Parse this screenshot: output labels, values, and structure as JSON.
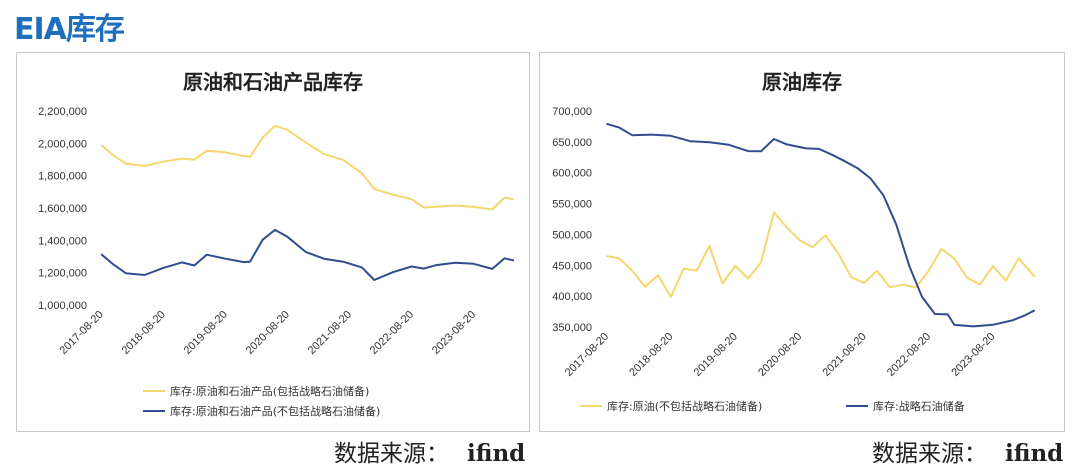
{
  "header": {
    "title": "EIA库存"
  },
  "source": {
    "label": "数据来源：",
    "value": "ifind"
  },
  "chart_data": [
    {
      "type": "line",
      "title": "原油和石油产品库存",
      "xlabel": "",
      "ylabel": "",
      "x_ticks": [
        "2017-08-20",
        "2018-08-20",
        "2019-08-20",
        "2020-08-20",
        "2021-08-20",
        "2022-08-20",
        "2023-08-20"
      ],
      "y_ticks": [
        "2,200,000",
        "2,000,000",
        "1,800,000",
        "1,600,000",
        "1,400,000",
        "1,200,000",
        "1,000,000"
      ],
      "ylim": [
        1000000,
        2200000
      ],
      "xlim": [
        2017.5,
        2024.3
      ],
      "grid": false,
      "legend": "bottom",
      "series": [
        {
          "name": "库存:原油和石油产品(包括战略石油储备)",
          "color": "#f5d76e",
          "x": [
            2017.6,
            2017.8,
            2018.0,
            2018.3,
            2018.6,
            2018.9,
            2019.1,
            2019.3,
            2019.6,
            2019.9,
            2020.0,
            2020.2,
            2020.4,
            2020.6,
            2020.9,
            2021.2,
            2021.5,
            2021.8,
            2022.0,
            2022.3,
            2022.6,
            2022.8,
            2023.0,
            2023.3,
            2023.6,
            2023.9,
            2024.1,
            2024.25
          ],
          "values": [
            1990000,
            1920000,
            1870000,
            1860000,
            1890000,
            1910000,
            1900000,
            1950000,
            1940000,
            1920000,
            1920000,
            2040000,
            2110000,
            2080000,
            2000000,
            1930000,
            1900000,
            1820000,
            1720000,
            1680000,
            1650000,
            1600000,
            1610000,
            1620000,
            1610000,
            1590000,
            1660000,
            1650000
          ]
        },
        {
          "name": "库存:原油和石油产品(不包括战略石油储备)",
          "color": "#2f4d8f",
          "x": [
            2017.6,
            2017.8,
            2018.0,
            2018.3,
            2018.6,
            2018.9,
            2019.1,
            2019.3,
            2019.6,
            2019.9,
            2020.0,
            2020.2,
            2020.4,
            2020.6,
            2020.9,
            2021.2,
            2021.5,
            2021.8,
            2022.0,
            2022.3,
            2022.6,
            2022.8,
            2023.0,
            2023.3,
            2023.6,
            2023.9,
            2024.1,
            2024.25
          ],
          "values": [
            1310000,
            1250000,
            1200000,
            1190000,
            1230000,
            1260000,
            1240000,
            1310000,
            1290000,
            1270000,
            1270000,
            1400000,
            1460000,
            1420000,
            1330000,
            1290000,
            1270000,
            1230000,
            1150000,
            1200000,
            1240000,
            1230000,
            1250000,
            1260000,
            1250000,
            1220000,
            1290000,
            1280000
          ]
        }
      ]
    },
    {
      "type": "line",
      "title": "原油库存",
      "xlabel": "",
      "ylabel": "",
      "x_ticks": [
        "2017-08-20",
        "2018-08-20",
        "2019-08-20",
        "2020-08-20",
        "2021-08-20",
        "2022-08-20",
        "2023-08-20"
      ],
      "y_ticks": [
        "700,000",
        "650,000",
        "600,000",
        "550,000",
        "500,000",
        "450,000",
        "400,000",
        "350,000"
      ],
      "ylim": [
        350000,
        700000
      ],
      "xlim": [
        2017.5,
        2024.3
      ],
      "grid": false,
      "legend": "bottom",
      "series": [
        {
          "name": "库存:原油(不包括战略石油储备)",
          "color": "#f5d76e",
          "x": [
            2017.6,
            2017.8,
            2018.0,
            2018.2,
            2018.4,
            2018.6,
            2018.8,
            2019.0,
            2019.2,
            2019.4,
            2019.6,
            2019.8,
            2020.0,
            2020.2,
            2020.4,
            2020.6,
            2020.8,
            2021.0,
            2021.2,
            2021.4,
            2021.6,
            2021.8,
            2022.0,
            2022.2,
            2022.4,
            2022.6,
            2022.8,
            2023.0,
            2023.2,
            2023.4,
            2023.6,
            2023.8,
            2024.0,
            2024.25
          ],
          "values": [
            465000,
            460000,
            440000,
            415000,
            435000,
            400000,
            445000,
            440000,
            480000,
            420000,
            450000,
            430000,
            455000,
            535000,
            510000,
            490000,
            480000,
            500000,
            470000,
            430000,
            420000,
            440000,
            415000,
            420000,
            415000,
            440000,
            475000,
            460000,
            430000,
            420000,
            450000,
            425000,
            460000,
            430000
          ]
        },
        {
          "name": "库存:战略石油储备",
          "color": "#2f4d8f",
          "x": [
            2017.6,
            2017.8,
            2018.0,
            2018.3,
            2018.6,
            2018.9,
            2019.2,
            2019.5,
            2019.8,
            2020.0,
            2020.2,
            2020.4,
            2020.7,
            2020.9,
            2021.1,
            2021.3,
            2021.5,
            2021.7,
            2021.9,
            2022.1,
            2022.3,
            2022.5,
            2022.7,
            2022.9,
            2023.0,
            2023.3,
            2023.6,
            2023.9,
            2024.1,
            2024.25
          ],
          "values": [
            678000,
            673000,
            662000,
            663000,
            660000,
            650000,
            648000,
            645000,
            636000,
            636000,
            655000,
            645000,
            638000,
            638000,
            630000,
            620000,
            608000,
            590000,
            562000,
            515000,
            450000,
            400000,
            372000,
            370000,
            352000,
            350000,
            354000,
            362000,
            370000,
            377000
          ]
        }
      ]
    }
  ]
}
